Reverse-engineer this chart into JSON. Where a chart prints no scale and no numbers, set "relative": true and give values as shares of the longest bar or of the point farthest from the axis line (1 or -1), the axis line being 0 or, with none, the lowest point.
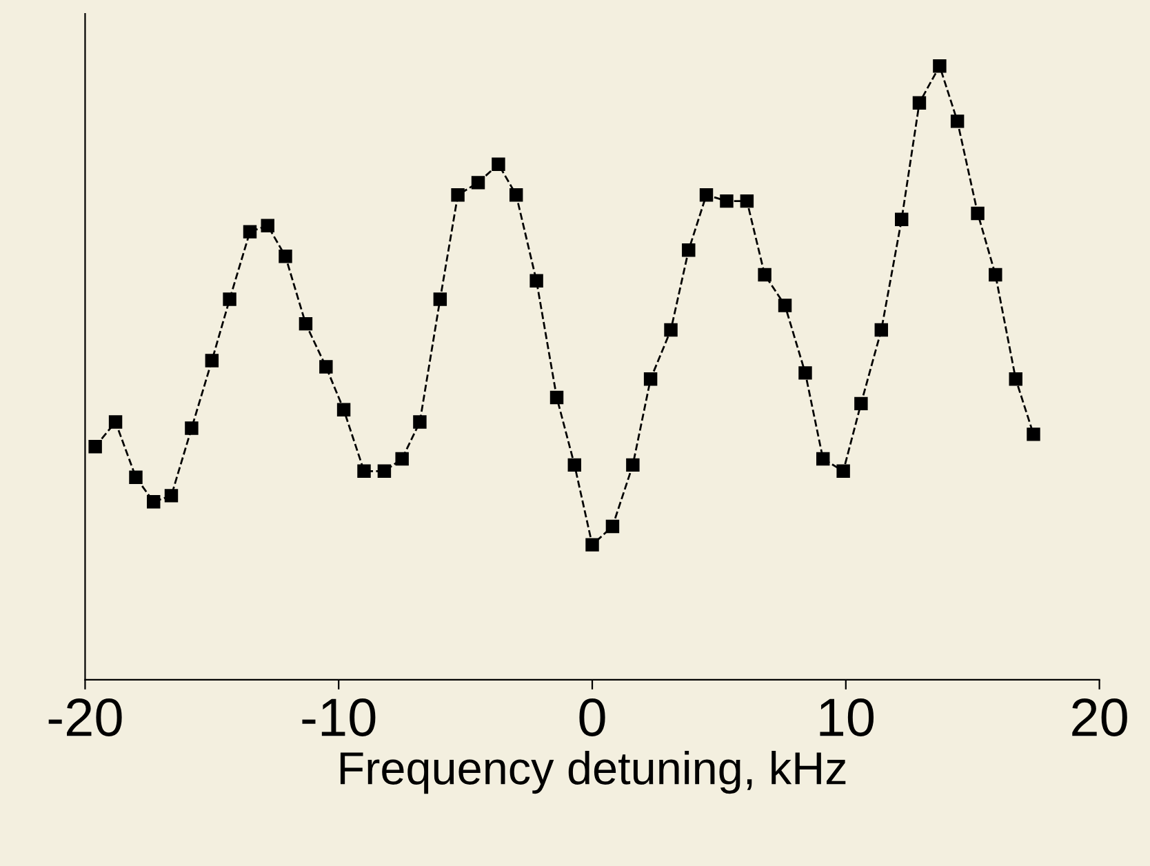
{
  "chart_data": {
    "type": "line",
    "relative": true,
    "xlabel": "Frequency detuning, kHz",
    "xlim": [
      -20,
      20
    ],
    "xticks": [
      -20,
      -10,
      0,
      10,
      20
    ],
    "marker": "square",
    "line_style": "dashed",
    "grid": false,
    "legend": false,
    "tick_labels": "x",
    "series": [
      {
        "color": "#000000",
        "x": [
          -19.6,
          -18.8,
          -18.0,
          -17.3,
          -16.6,
          -15.8,
          -15.0,
          -14.3,
          -13.5,
          -12.8,
          -12.1,
          -11.3,
          -10.5,
          -9.8,
          -9.0,
          -8.2,
          -7.5,
          -6.8,
          -6.0,
          -5.3,
          -4.5,
          -3.7,
          -3.0,
          -2.2,
          -1.4,
          -0.7,
          0.0,
          0.8,
          1.6,
          2.3,
          3.1,
          3.8,
          4.5,
          5.3,
          6.1,
          6.8,
          7.6,
          8.4,
          9.1,
          9.9,
          10.6,
          11.4,
          12.2,
          12.9,
          13.7,
          14.4,
          15.2,
          15.9,
          16.7,
          17.4
        ],
        "values": [
          0.38,
          0.42,
          0.33,
          0.29,
          0.3,
          0.41,
          0.52,
          0.62,
          0.73,
          0.74,
          0.69,
          0.58,
          0.51,
          0.44,
          0.34,
          0.34,
          0.36,
          0.42,
          0.62,
          0.79,
          0.81,
          0.84,
          0.79,
          0.65,
          0.46,
          0.35,
          0.22,
          0.25,
          0.35,
          0.49,
          0.57,
          0.7,
          0.79,
          0.78,
          0.78,
          0.66,
          0.61,
          0.5,
          0.36,
          0.34,
          0.45,
          0.57,
          0.75,
          0.94,
          1,
          0.91,
          0.76,
          0.66,
          0.49,
          0.4
        ]
      }
    ]
  }
}
